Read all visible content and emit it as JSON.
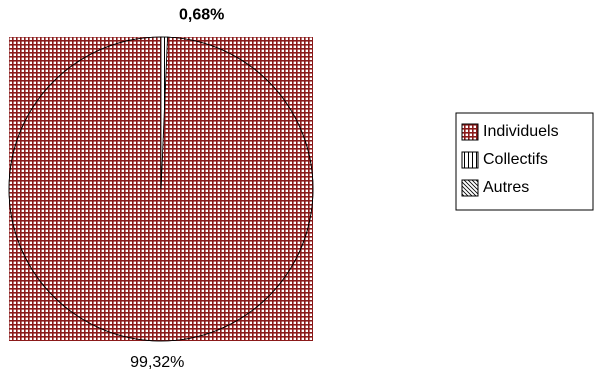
{
  "chart_data": {
    "type": "pie",
    "categories": [
      "Individuels",
      "Collectifs",
      "Autres"
    ],
    "values": [
      99.32,
      0.68,
      0
    ],
    "value_labels": [
      "99,32%",
      "0,68%",
      null
    ],
    "colors": [
      "#8b1a1a",
      "#000000",
      "#000000"
    ],
    "patterns": [
      "grid",
      "vertical",
      "diagonal"
    ],
    "legend": "right"
  }
}
